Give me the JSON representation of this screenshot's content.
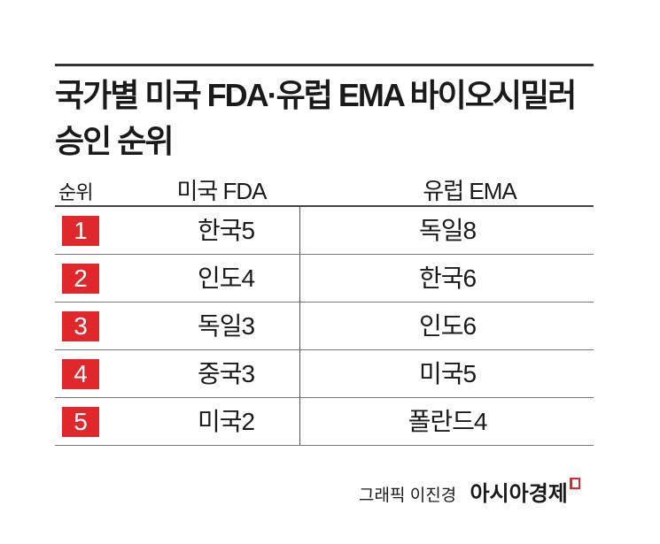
{
  "title_line1": "국가별 미국 FDA·유럽 EMA 바이오시밀러",
  "title_line2": "승인 순위",
  "chart_data": {
    "type": "table",
    "columns": [
      "순위",
      "미국 FDA",
      "유럽 EMA"
    ],
    "rows": [
      {
        "rank": "1",
        "fda": "한국5",
        "ema": "독일8"
      },
      {
        "rank": "2",
        "fda": "인도4",
        "ema": "한국6"
      },
      {
        "rank": "3",
        "fda": "독일3",
        "ema": "인도6"
      },
      {
        "rank": "4",
        "fda": "중국3",
        "ema": "미국5"
      },
      {
        "rank": "5",
        "fda": "미국2",
        "ema": "폴란드4"
      }
    ]
  },
  "footer": {
    "credit": "그래픽 이진경",
    "brand": "아시아경제"
  },
  "colors": {
    "rank_badge": "#e0272b",
    "brand_mark": "#e0272b"
  }
}
